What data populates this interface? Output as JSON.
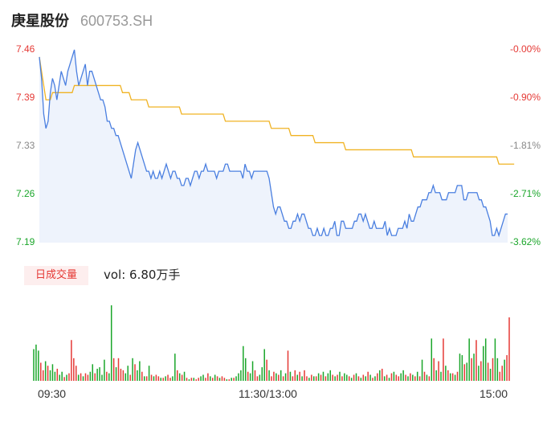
{
  "header": {
    "name": "庚星股份",
    "code": "600753.SH"
  },
  "colors": {
    "up": "#e53935",
    "down": "#1aa62a",
    "price_line": "#4a7fe0",
    "avg_line": "#f0b323",
    "fill": "#eef3fc"
  },
  "chart_data": {
    "type": "line",
    "y_left_ticks": [
      "7.46",
      "7.39",
      "7.33",
      "7.26",
      "7.19"
    ],
    "y_right_ticks": [
      "-0.00%",
      "-0.90%",
      "-1.81%",
      "-2.71%",
      "-3.62%"
    ],
    "ylim": [
      7.19,
      7.46
    ],
    "x_ticks": [
      "09:30",
      "11:30/13:00",
      "15:00"
    ],
    "price": [
      7.45,
      7.42,
      7.37,
      7.35,
      7.36,
      7.4,
      7.42,
      7.41,
      7.39,
      7.41,
      7.43,
      7.42,
      7.41,
      7.43,
      7.44,
      7.45,
      7.46,
      7.43,
      7.41,
      7.42,
      7.43,
      7.44,
      7.41,
      7.43,
      7.43,
      7.42,
      7.41,
      7.4,
      7.39,
      7.39,
      7.38,
      7.36,
      7.36,
      7.35,
      7.35,
      7.34,
      7.34,
      7.33,
      7.32,
      7.31,
      7.3,
      7.29,
      7.28,
      7.3,
      7.32,
      7.33,
      7.32,
      7.31,
      7.3,
      7.29,
      7.29,
      7.28,
      7.29,
      7.28,
      7.28,
      7.29,
      7.28,
      7.29,
      7.3,
      7.29,
      7.28,
      7.29,
      7.29,
      7.28,
      7.28,
      7.27,
      7.27,
      7.28,
      7.28,
      7.27,
      7.28,
      7.29,
      7.29,
      7.28,
      7.29,
      7.29,
      7.3,
      7.29,
      7.29,
      7.29,
      7.29,
      7.28,
      7.29,
      7.29,
      7.29,
      7.3,
      7.3,
      7.29,
      7.29,
      7.29,
      7.29,
      7.29,
      7.29,
      7.28,
      7.3,
      7.29,
      7.29,
      7.28,
      7.29,
      7.29,
      7.29,
      7.29,
      7.29,
      7.29,
      7.29,
      7.28,
      7.26,
      7.24,
      7.23,
      7.24,
      7.24,
      7.23,
      7.22,
      7.22,
      7.21,
      7.21,
      7.22,
      7.22,
      7.23,
      7.22,
      7.23,
      7.23,
      7.22,
      7.21,
      7.21,
      7.2,
      7.2,
      7.21,
      7.2,
      7.2,
      7.21,
      7.2,
      7.2,
      7.21,
      7.21,
      7.22,
      7.2,
      7.2,
      7.22,
      7.22,
      7.21,
      7.21,
      7.21,
      7.21,
      7.22,
      7.22,
      7.23,
      7.23,
      7.22,
      7.23,
      7.22,
      7.21,
      7.21,
      7.22,
      7.21,
      7.21,
      7.21,
      7.21,
      7.22,
      7.2,
      7.21,
      7.2,
      7.2,
      7.2,
      7.21,
      7.21,
      7.21,
      7.22,
      7.21,
      7.23,
      7.22,
      7.22,
      7.23,
      7.24,
      7.24,
      7.25,
      7.25,
      7.25,
      7.26,
      7.26,
      7.27,
      7.26,
      7.26,
      7.26,
      7.25,
      7.25,
      7.25,
      7.26,
      7.26,
      7.26,
      7.26,
      7.27,
      7.27,
      7.27,
      7.25,
      7.25,
      7.26,
      7.26,
      7.26,
      7.26,
      7.26,
      7.25,
      7.25,
      7.24,
      7.24,
      7.23,
      7.22,
      7.2,
      7.2,
      7.21,
      7.2,
      7.21,
      7.22,
      7.23,
      7.23
    ],
    "avg": [
      7.45,
      7.43,
      7.41,
      7.39,
      7.39,
      7.39,
      7.4,
      7.4,
      7.4,
      7.4,
      7.4,
      7.4,
      7.4,
      7.4,
      7.4,
      7.4,
      7.41,
      7.41,
      7.41,
      7.41,
      7.41,
      7.41,
      7.41,
      7.41,
      7.41,
      7.41,
      7.41,
      7.41,
      7.41,
      7.41,
      7.41,
      7.41,
      7.41,
      7.41,
      7.41,
      7.41,
      7.41,
      7.41,
      7.4,
      7.4,
      7.4,
      7.4,
      7.39,
      7.39,
      7.39,
      7.39,
      7.39,
      7.39,
      7.39,
      7.39,
      7.38,
      7.38,
      7.38,
      7.38,
      7.38,
      7.38,
      7.38,
      7.38,
      7.38,
      7.38,
      7.38,
      7.38,
      7.38,
      7.38,
      7.38,
      7.37,
      7.37,
      7.37,
      7.37,
      7.37,
      7.37,
      7.37,
      7.37,
      7.37,
      7.37,
      7.37,
      7.37,
      7.37,
      7.37,
      7.37,
      7.37,
      7.37,
      7.37,
      7.37,
      7.37,
      7.36,
      7.36,
      7.36,
      7.36,
      7.36,
      7.36,
      7.36,
      7.36,
      7.36,
      7.36,
      7.36,
      7.36,
      7.36,
      7.36,
      7.36,
      7.36,
      7.36,
      7.36,
      7.36,
      7.36,
      7.36,
      7.35,
      7.35,
      7.35,
      7.35,
      7.35,
      7.35,
      7.35,
      7.35,
      7.35,
      7.34,
      7.34,
      7.34,
      7.34,
      7.34,
      7.34,
      7.34,
      7.34,
      7.34,
      7.34,
      7.34,
      7.33,
      7.33,
      7.33,
      7.33,
      7.33,
      7.33,
      7.33,
      7.33,
      7.33,
      7.33,
      7.33,
      7.33,
      7.33,
      7.33,
      7.32,
      7.32,
      7.32,
      7.32,
      7.32,
      7.32,
      7.32,
      7.32,
      7.32,
      7.32,
      7.32,
      7.32,
      7.32,
      7.32,
      7.32,
      7.32,
      7.32,
      7.32,
      7.32,
      7.32,
      7.32,
      7.32,
      7.32,
      7.32,
      7.32,
      7.32,
      7.32,
      7.32,
      7.32,
      7.32,
      7.32,
      7.31,
      7.31,
      7.31,
      7.31,
      7.31,
      7.31,
      7.31,
      7.31,
      7.31,
      7.31,
      7.31,
      7.31,
      7.31,
      7.31,
      7.31,
      7.31,
      7.31,
      7.31,
      7.31,
      7.31,
      7.31,
      7.31,
      7.31,
      7.31,
      7.31,
      7.31,
      7.31,
      7.31,
      7.31,
      7.31,
      7.31,
      7.31,
      7.31,
      7.31,
      7.31,
      7.31,
      7.31,
      7.31,
      7.31,
      7.3,
      7.3,
      7.3,
      7.3,
      7.3,
      7.3,
      7.3,
      7.3
    ],
    "volume_label": "日成交量",
    "volume_text": "vol: 6.80万手",
    "volume": [
      {
        "v": 0.42,
        "up": false
      },
      {
        "v": 0.48,
        "up": false
      },
      {
        "v": 0.4,
        "up": false
      },
      {
        "v": 0.24,
        "up": true
      },
      {
        "v": 0.14,
        "up": true
      },
      {
        "v": 0.26,
        "up": false
      },
      {
        "v": 0.2,
        "up": true
      },
      {
        "v": 0.14,
        "up": false
      },
      {
        "v": 0.22,
        "up": false
      },
      {
        "v": 0.12,
        "up": false
      },
      {
        "v": 0.16,
        "up": true
      },
      {
        "v": 0.08,
        "up": false
      },
      {
        "v": 0.12,
        "up": false
      },
      {
        "v": 0.05,
        "up": true
      },
      {
        "v": 0.08,
        "up": false
      },
      {
        "v": 0.1,
        "up": true
      },
      {
        "v": 0.54,
        "up": true
      },
      {
        "v": 0.3,
        "up": true
      },
      {
        "v": 0.2,
        "up": true
      },
      {
        "v": 0.08,
        "up": false
      },
      {
        "v": 0.1,
        "up": true
      },
      {
        "v": 0.06,
        "up": false
      },
      {
        "v": 0.1,
        "up": true
      },
      {
        "v": 0.08,
        "up": true
      },
      {
        "v": 0.12,
        "up": false
      },
      {
        "v": 0.22,
        "up": false
      },
      {
        "v": 0.1,
        "up": true
      },
      {
        "v": 0.16,
        "up": false
      },
      {
        "v": 0.18,
        "up": false
      },
      {
        "v": 0.08,
        "up": false
      },
      {
        "v": 0.28,
        "up": false
      },
      {
        "v": 0.12,
        "up": true
      },
      {
        "v": 0.1,
        "up": false
      },
      {
        "v": 1.0,
        "up": false
      },
      {
        "v": 0.3,
        "up": true
      },
      {
        "v": 0.18,
        "up": false
      },
      {
        "v": 0.3,
        "up": true
      },
      {
        "v": 0.16,
        "up": true
      },
      {
        "v": 0.14,
        "up": true
      },
      {
        "v": 0.1,
        "up": false
      },
      {
        "v": 0.2,
        "up": false
      },
      {
        "v": 0.08,
        "up": true
      },
      {
        "v": 0.3,
        "up": false
      },
      {
        "v": 0.22,
        "up": true
      },
      {
        "v": 0.14,
        "up": false
      },
      {
        "v": 0.26,
        "up": false
      },
      {
        "v": 0.12,
        "up": true
      },
      {
        "v": 0.06,
        "up": false
      },
      {
        "v": 0.06,
        "up": true
      },
      {
        "v": 0.2,
        "up": false
      },
      {
        "v": 0.08,
        "up": true
      },
      {
        "v": 0.06,
        "up": false
      },
      {
        "v": 0.08,
        "up": true
      },
      {
        "v": 0.06,
        "up": true
      },
      {
        "v": 0.04,
        "up": false
      },
      {
        "v": 0.04,
        "up": true
      },
      {
        "v": 0.06,
        "up": false
      },
      {
        "v": 0.08,
        "up": true
      },
      {
        "v": 0.04,
        "up": true
      },
      {
        "v": 0.06,
        "up": false
      },
      {
        "v": 0.36,
        "up": false
      },
      {
        "v": 0.14,
        "up": true
      },
      {
        "v": 0.1,
        "up": false
      },
      {
        "v": 0.08,
        "up": true
      },
      {
        "v": 0.12,
        "up": false
      },
      {
        "v": 0.04,
        "up": true
      },
      {
        "v": 0.02,
        "up": false
      },
      {
        "v": 0.04,
        "up": true
      },
      {
        "v": 0.04,
        "up": false
      },
      {
        "v": 0.02,
        "up": true
      },
      {
        "v": 0.04,
        "up": true
      },
      {
        "v": 0.06,
        "up": false
      },
      {
        "v": 0.08,
        "up": false
      },
      {
        "v": 0.04,
        "up": true
      },
      {
        "v": 0.1,
        "up": true
      },
      {
        "v": 0.06,
        "up": false
      },
      {
        "v": 0.04,
        "up": true
      },
      {
        "v": 0.08,
        "up": false
      },
      {
        "v": 0.06,
        "up": true
      },
      {
        "v": 0.04,
        "up": false
      },
      {
        "v": 0.06,
        "up": true
      },
      {
        "v": 0.04,
        "up": true
      },
      {
        "v": 0.02,
        "up": false
      },
      {
        "v": 0.02,
        "up": true
      },
      {
        "v": 0.04,
        "up": false
      },
      {
        "v": 0.04,
        "up": true
      },
      {
        "v": 0.06,
        "up": false
      },
      {
        "v": 0.1,
        "up": false
      },
      {
        "v": 0.14,
        "up": false
      },
      {
        "v": 0.46,
        "up": false
      },
      {
        "v": 0.3,
        "up": false
      },
      {
        "v": 0.12,
        "up": true
      },
      {
        "v": 0.1,
        "up": false
      },
      {
        "v": 0.26,
        "up": false
      },
      {
        "v": 0.14,
        "up": true
      },
      {
        "v": 0.06,
        "up": true
      },
      {
        "v": 0.08,
        "up": false
      },
      {
        "v": 0.18,
        "up": false
      },
      {
        "v": 0.42,
        "up": false
      },
      {
        "v": 0.28,
        "up": true
      },
      {
        "v": 0.14,
        "up": false
      },
      {
        "v": 0.06,
        "up": true
      },
      {
        "v": 0.12,
        "up": true
      },
      {
        "v": 0.1,
        "up": false
      },
      {
        "v": 0.08,
        "up": true
      },
      {
        "v": 0.14,
        "up": false
      },
      {
        "v": 0.06,
        "up": true
      },
      {
        "v": 0.1,
        "up": false
      },
      {
        "v": 0.4,
        "up": true
      },
      {
        "v": 0.12,
        "up": false
      },
      {
        "v": 0.06,
        "up": true
      },
      {
        "v": 0.14,
        "up": true
      },
      {
        "v": 0.08,
        "up": false
      },
      {
        "v": 0.12,
        "up": true
      },
      {
        "v": 0.06,
        "up": false
      },
      {
        "v": 0.14,
        "up": true
      },
      {
        "v": 0.06,
        "up": true
      },
      {
        "v": 0.04,
        "up": false
      },
      {
        "v": 0.08,
        "up": true
      },
      {
        "v": 0.06,
        "up": false
      },
      {
        "v": 0.06,
        "up": true
      },
      {
        "v": 0.1,
        "up": false
      },
      {
        "v": 0.08,
        "up": true
      },
      {
        "v": 0.12,
        "up": false
      },
      {
        "v": 0.06,
        "up": true
      },
      {
        "v": 0.1,
        "up": false
      },
      {
        "v": 0.14,
        "up": false
      },
      {
        "v": 0.08,
        "up": true
      },
      {
        "v": 0.06,
        "up": false
      },
      {
        "v": 0.08,
        "up": true
      },
      {
        "v": 0.12,
        "up": false
      },
      {
        "v": 0.06,
        "up": true
      },
      {
        "v": 0.1,
        "up": false
      },
      {
        "v": 0.08,
        "up": false
      },
      {
        "v": 0.06,
        "up": true
      },
      {
        "v": 0.04,
        "up": false
      },
      {
        "v": 0.08,
        "up": true
      },
      {
        "v": 0.1,
        "up": false
      },
      {
        "v": 0.06,
        "up": true
      },
      {
        "v": 0.04,
        "up": false
      },
      {
        "v": 0.08,
        "up": true
      },
      {
        "v": 0.06,
        "up": false
      },
      {
        "v": 0.12,
        "up": true
      },
      {
        "v": 0.08,
        "up": false
      },
      {
        "v": 0.04,
        "up": true
      },
      {
        "v": 0.06,
        "up": false
      },
      {
        "v": 0.1,
        "up": true
      },
      {
        "v": 0.14,
        "up": false
      },
      {
        "v": 0.16,
        "up": true
      },
      {
        "v": 0.06,
        "up": false
      },
      {
        "v": 0.08,
        "up": true
      },
      {
        "v": 0.04,
        "up": false
      },
      {
        "v": 0.1,
        "up": true
      },
      {
        "v": 0.12,
        "up": false
      },
      {
        "v": 0.08,
        "up": true
      },
      {
        "v": 0.06,
        "up": true
      },
      {
        "v": 0.1,
        "up": false
      },
      {
        "v": 0.14,
        "up": false
      },
      {
        "v": 0.08,
        "up": true
      },
      {
        "v": 0.06,
        "up": false
      },
      {
        "v": 0.1,
        "up": true
      },
      {
        "v": 0.08,
        "up": false
      },
      {
        "v": 0.06,
        "up": true
      },
      {
        "v": 0.12,
        "up": false
      },
      {
        "v": 0.06,
        "up": true
      },
      {
        "v": 0.28,
        "up": false
      },
      {
        "v": 0.12,
        "up": true
      },
      {
        "v": 0.08,
        "up": false
      },
      {
        "v": 0.06,
        "up": true
      },
      {
        "v": 0.56,
        "up": false
      },
      {
        "v": 0.3,
        "up": true
      },
      {
        "v": 0.14,
        "up": false
      },
      {
        "v": 0.26,
        "up": true
      },
      {
        "v": 0.12,
        "up": false
      },
      {
        "v": 0.56,
        "up": true
      },
      {
        "v": 0.2,
        "up": false
      },
      {
        "v": 0.14,
        "up": true
      },
      {
        "v": 0.1,
        "up": false
      },
      {
        "v": 0.1,
        "up": true
      },
      {
        "v": 0.08,
        "up": false
      },
      {
        "v": 0.12,
        "up": true
      },
      {
        "v": 0.36,
        "up": false
      },
      {
        "v": 0.34,
        "up": false
      },
      {
        "v": 0.22,
        "up": true
      },
      {
        "v": 0.24,
        "up": false
      },
      {
        "v": 0.56,
        "up": false
      },
      {
        "v": 0.3,
        "up": true
      },
      {
        "v": 0.36,
        "up": false
      },
      {
        "v": 0.54,
        "up": true
      },
      {
        "v": 0.2,
        "up": false
      },
      {
        "v": 0.26,
        "up": true
      },
      {
        "v": 0.46,
        "up": false
      },
      {
        "v": 0.56,
        "up": false
      },
      {
        "v": 0.24,
        "up": true
      },
      {
        "v": 0.16,
        "up": false
      },
      {
        "v": 0.3,
        "up": true
      },
      {
        "v": 0.56,
        "up": false
      },
      {
        "v": 0.3,
        "up": false
      },
      {
        "v": 0.12,
        "up": true
      },
      {
        "v": 0.2,
        "up": true
      },
      {
        "v": 0.28,
        "up": false
      },
      {
        "v": 0.34,
        "up": true
      },
      {
        "v": 0.84,
        "up": true
      }
    ]
  }
}
